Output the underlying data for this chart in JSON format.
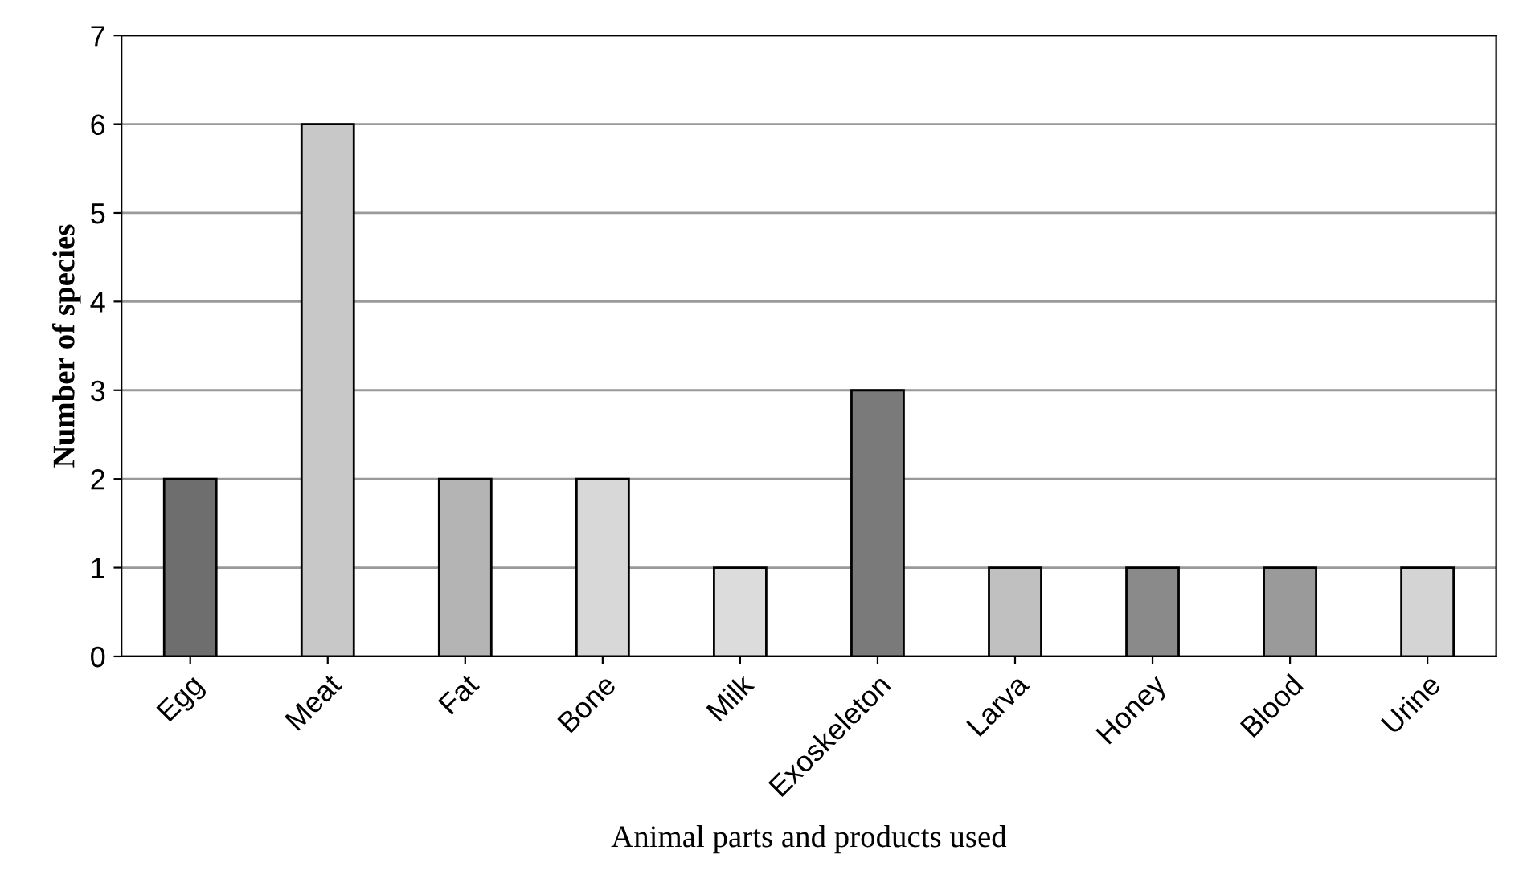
{
  "chart_data": {
    "type": "bar",
    "xlabel": "Animal parts and products used",
    "ylabel": "Number of species",
    "categories": [
      "Egg",
      "Meat",
      "Fat",
      "Bone",
      "Milk",
      "Exoskeleton",
      "Larva",
      "Honey",
      "Blood",
      "Urine"
    ],
    "values": [
      2,
      6,
      2,
      2,
      1,
      3,
      1,
      1,
      1,
      1
    ],
    "colors": [
      "#6e6e6e",
      "#c8c8c8",
      "#b4b4b4",
      "#d8d8d8",
      "#dcdcdc",
      "#7a7a7a",
      "#c0c0c0",
      "#8a8a8a",
      "#9a9a9a",
      "#d4d4d4"
    ],
    "ylim": [
      0,
      7
    ],
    "yticks": [
      0,
      1,
      2,
      3,
      4,
      5,
      6,
      7
    ],
    "grid": "y",
    "legend": false
  }
}
